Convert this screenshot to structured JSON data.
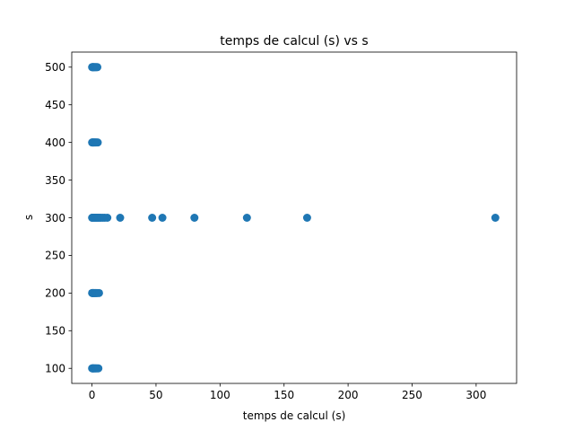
{
  "chart_data": {
    "type": "scatter",
    "title": "temps de calcul (s)   vs   s",
    "xlabel": "temps de calcul (s)",
    "ylabel": "s",
    "xlim": [
      -15.8,
      331.6
    ],
    "ylim": [
      80,
      520
    ],
    "xticks": [
      0,
      50,
      100,
      150,
      200,
      250,
      300
    ],
    "yticks": [
      100,
      150,
      200,
      250,
      300,
      350,
      400,
      450,
      500
    ],
    "grid": false,
    "legend": "none",
    "marker_color": "#1f77b4",
    "series": [
      {
        "points": [
          [
            0.1,
            500
          ],
          [
            0.3,
            500
          ],
          [
            0.6,
            500
          ],
          [
            0.9,
            500
          ],
          [
            1.2,
            500
          ],
          [
            1.6,
            500
          ],
          [
            2.0,
            500
          ],
          [
            2.5,
            500
          ],
          [
            3.0,
            500
          ],
          [
            3.6,
            500
          ],
          [
            4.2,
            500
          ],
          [
            0.1,
            400
          ],
          [
            0.3,
            400
          ],
          [
            0.6,
            400
          ],
          [
            0.9,
            400
          ],
          [
            1.2,
            400
          ],
          [
            1.6,
            400
          ],
          [
            2.0,
            400
          ],
          [
            2.5,
            400
          ],
          [
            3.0,
            400
          ],
          [
            3.7,
            400
          ],
          [
            4.5,
            400
          ],
          [
            0.1,
            300
          ],
          [
            0.3,
            300
          ],
          [
            0.6,
            300
          ],
          [
            0.9,
            300
          ],
          [
            1.2,
            300
          ],
          [
            1.5,
            300
          ],
          [
            1.9,
            300
          ],
          [
            2.3,
            300
          ],
          [
            2.8,
            300
          ],
          [
            3.3,
            300
          ],
          [
            3.9,
            300
          ],
          [
            4.5,
            300
          ],
          [
            5.2,
            300
          ],
          [
            6.0,
            300
          ],
          [
            7.0,
            300
          ],
          [
            8.5,
            300
          ],
          [
            10.0,
            300
          ],
          [
            12.0,
            300
          ],
          [
            22.0,
            300
          ],
          [
            47.0,
            300
          ],
          [
            55.0,
            300
          ],
          [
            80.0,
            300
          ],
          [
            121.0,
            300
          ],
          [
            168.0,
            300
          ],
          [
            315.0,
            300
          ],
          [
            0.1,
            200
          ],
          [
            0.3,
            200
          ],
          [
            0.6,
            200
          ],
          [
            0.9,
            200
          ],
          [
            1.2,
            200
          ],
          [
            1.6,
            200
          ],
          [
            2.0,
            200
          ],
          [
            2.5,
            200
          ],
          [
            3.0,
            200
          ],
          [
            3.6,
            200
          ],
          [
            4.3,
            200
          ],
          [
            5.5,
            200
          ],
          [
            0.1,
            100
          ],
          [
            0.3,
            100
          ],
          [
            0.6,
            100
          ],
          [
            0.9,
            100
          ],
          [
            1.2,
            100
          ],
          [
            1.6,
            100
          ],
          [
            2.0,
            100
          ],
          [
            2.5,
            100
          ],
          [
            3.0,
            100
          ],
          [
            3.5,
            100
          ],
          [
            4.3,
            100
          ],
          [
            5.0,
            100
          ]
        ]
      }
    ]
  }
}
